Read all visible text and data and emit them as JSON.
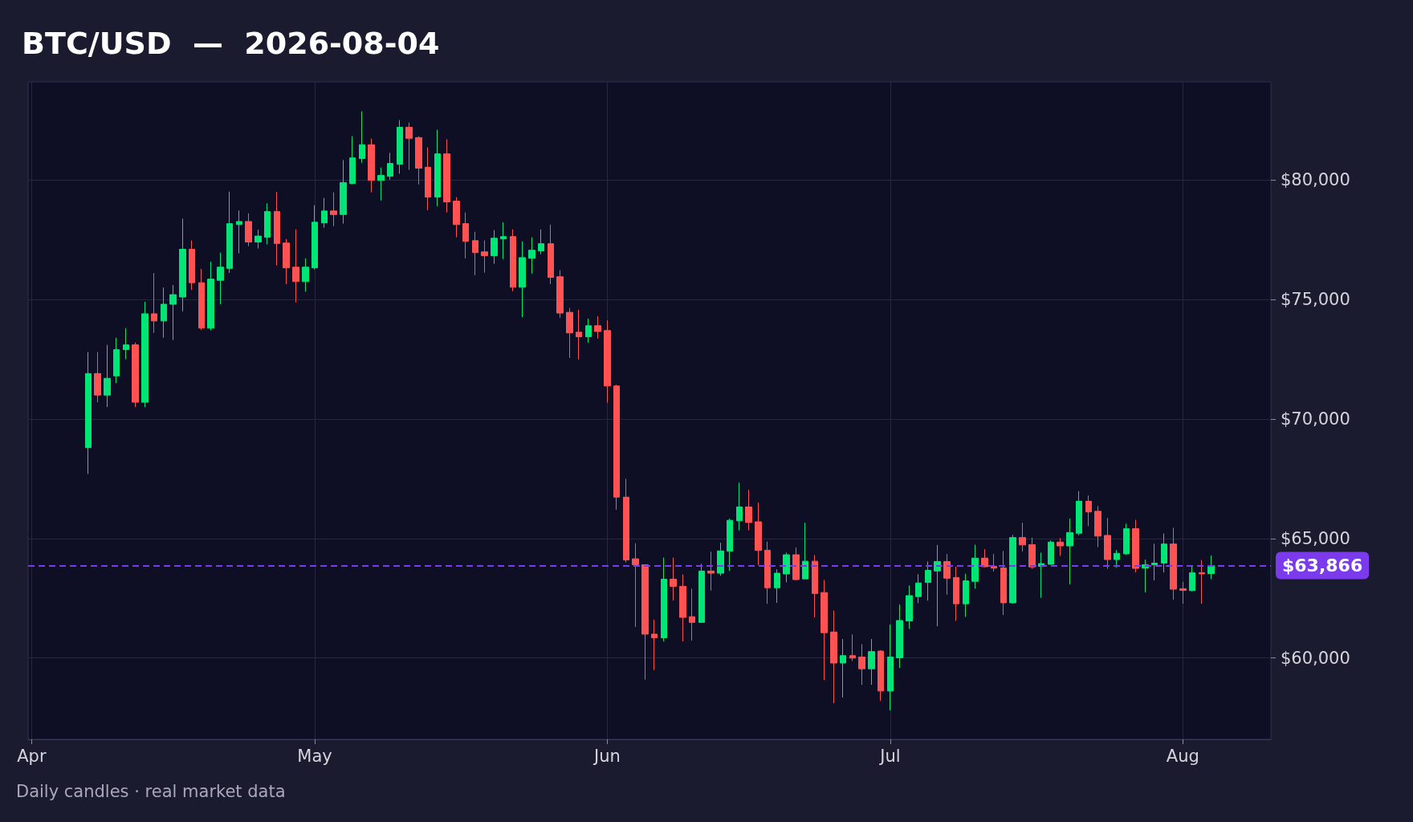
{
  "chart_data": {
    "type": "candlestick",
    "title": "BTC/USD  —  2026-08-04",
    "annotations": [
      "Daily candles · real market data"
    ],
    "x": [
      "2026-04-07",
      "2026-04-08",
      "2026-04-09",
      "2026-04-10",
      "2026-04-11",
      "2026-04-12",
      "2026-04-13",
      "2026-04-14",
      "2026-04-15",
      "2026-04-16",
      "2026-04-17",
      "2026-04-18",
      "2026-04-19",
      "2026-04-20",
      "2026-04-21",
      "2026-04-22",
      "2026-04-23",
      "2026-04-24",
      "2026-04-25",
      "2026-04-26",
      "2026-04-27",
      "2026-04-28",
      "2026-04-29",
      "2026-04-30",
      "2026-05-01",
      "2026-05-02",
      "2026-05-03",
      "2026-05-04",
      "2026-05-05",
      "2026-05-06",
      "2026-05-07",
      "2026-05-08",
      "2026-05-09",
      "2026-05-10",
      "2026-05-11",
      "2026-05-12",
      "2026-05-13",
      "2026-05-14",
      "2026-05-15",
      "2026-05-16",
      "2026-05-17",
      "2026-05-18",
      "2026-05-19",
      "2026-05-20",
      "2026-05-21",
      "2026-05-22",
      "2026-05-23",
      "2026-05-24",
      "2026-05-25",
      "2026-05-26",
      "2026-05-27",
      "2026-05-28",
      "2026-05-29",
      "2026-05-30",
      "2026-05-31",
      "2026-06-01",
      "2026-06-02",
      "2026-06-03",
      "2026-06-04",
      "2026-06-05",
      "2026-06-06",
      "2026-06-07",
      "2026-06-08",
      "2026-06-09",
      "2026-06-10",
      "2026-06-11",
      "2026-06-12",
      "2026-06-13",
      "2026-06-14",
      "2026-06-15",
      "2026-06-16",
      "2026-06-17",
      "2026-06-18",
      "2026-06-19",
      "2026-06-20",
      "2026-06-21",
      "2026-06-22",
      "2026-06-23",
      "2026-06-24",
      "2026-06-25",
      "2026-06-26",
      "2026-06-27",
      "2026-06-28",
      "2026-06-29",
      "2026-06-30",
      "2026-07-01",
      "2026-07-02",
      "2026-07-03",
      "2026-07-04",
      "2026-07-05",
      "2026-07-06",
      "2026-07-07",
      "2026-07-08",
      "2026-07-09",
      "2026-07-10",
      "2026-07-11",
      "2026-07-12",
      "2026-07-13",
      "2026-07-14",
      "2026-07-15",
      "2026-07-16",
      "2026-07-17",
      "2026-07-18",
      "2026-07-19",
      "2026-07-20",
      "2026-07-21",
      "2026-07-22",
      "2026-07-23",
      "2026-07-24",
      "2026-07-25",
      "2026-07-26",
      "2026-07-27",
      "2026-07-28",
      "2026-07-29",
      "2026-07-30",
      "2026-07-31",
      "2026-08-01",
      "2026-08-02",
      "2026-08-03",
      "2026-08-04"
    ],
    "ohlc": [
      [
        68800,
        72800,
        67700,
        71900
      ],
      [
        71900,
        72800,
        70700,
        71000
      ],
      [
        71000,
        73100,
        70500,
        71700
      ],
      [
        71800,
        73400,
        71500,
        72900
      ],
      [
        72900,
        73800,
        72500,
        73100
      ],
      [
        73100,
        73200,
        70500,
        70700
      ],
      [
        70700,
        74900,
        70500,
        74400
      ],
      [
        74400,
        76100,
        73600,
        74100
      ],
      [
        74100,
        75500,
        73400,
        74800
      ],
      [
        74800,
        75600,
        73300,
        75200
      ],
      [
        75100,
        78380,
        74500,
        77100
      ],
      [
        77100,
        77470,
        75400,
        75700
      ],
      [
        75700,
        76280,
        73730,
        73800
      ],
      [
        73800,
        76580,
        73700,
        75850
      ],
      [
        75800,
        76960,
        74800,
        76350
      ],
      [
        76300,
        79510,
        76110,
        78170
      ],
      [
        78130,
        78720,
        76930,
        78260
      ],
      [
        78260,
        78600,
        77230,
        77400
      ],
      [
        77400,
        77920,
        77130,
        77650
      ],
      [
        77600,
        79020,
        77300,
        78680
      ],
      [
        78680,
        79500,
        76420,
        77340
      ],
      [
        77360,
        77530,
        75640,
        76320
      ],
      [
        76350,
        77930,
        74870,
        75750
      ],
      [
        75750,
        76720,
        75330,
        76350
      ],
      [
        76320,
        78940,
        76250,
        78230
      ],
      [
        78200,
        79250,
        78000,
        78700
      ],
      [
        78700,
        79480,
        78060,
        78550
      ],
      [
        78550,
        80830,
        78170,
        79890
      ],
      [
        79850,
        81830,
        79810,
        80920
      ],
      [
        80890,
        82870,
        80720,
        81470
      ],
      [
        81470,
        81730,
        79480,
        79980
      ],
      [
        79980,
        80520,
        79140,
        80190
      ],
      [
        80150,
        81130,
        80010,
        80690
      ],
      [
        80660,
        82500,
        80260,
        82200
      ],
      [
        82200,
        82400,
        80420,
        81740
      ],
      [
        81770,
        81830,
        79810,
        80490
      ],
      [
        80530,
        81360,
        78730,
        79280
      ],
      [
        79280,
        82100,
        78900,
        81090
      ],
      [
        81090,
        81700,
        78640,
        79080
      ],
      [
        79110,
        79280,
        77600,
        78130
      ],
      [
        78170,
        78640,
        76720,
        77430
      ],
      [
        77460,
        77830,
        76010,
        76960
      ],
      [
        76990,
        77470,
        76120,
        76830
      ],
      [
        76830,
        77900,
        76490,
        77560
      ],
      [
        77530,
        78230,
        76690,
        77630
      ],
      [
        77630,
        77930,
        75340,
        75510
      ],
      [
        75510,
        77430,
        74260,
        76750
      ],
      [
        76720,
        77600,
        76080,
        77060
      ],
      [
        77030,
        77930,
        76890,
        77330
      ],
      [
        77330,
        78130,
        75640,
        75920
      ],
      [
        75950,
        76220,
        74230,
        74430
      ],
      [
        74460,
        74640,
        72550,
        73600
      ],
      [
        73630,
        74570,
        72490,
        73440
      ],
      [
        73440,
        74200,
        73190,
        73900
      ],
      [
        73900,
        74300,
        73360,
        73660
      ],
      [
        73700,
        74130,
        70680,
        71380
      ],
      [
        71380,
        71430,
        66200,
        66730
      ],
      [
        66730,
        67500,
        64000,
        64100
      ],
      [
        64150,
        64800,
        61300,
        63900
      ],
      [
        63900,
        63900,
        59100,
        61000
      ],
      [
        61000,
        61600,
        59500,
        60850
      ],
      [
        60850,
        64200,
        60700,
        63300
      ],
      [
        63300,
        64200,
        62400,
        63000
      ],
      [
        63000,
        63500,
        60700,
        61700
      ],
      [
        61730,
        62900,
        60730,
        61490
      ],
      [
        61490,
        63940,
        61490,
        63640
      ],
      [
        63640,
        64450,
        62820,
        63550
      ],
      [
        63550,
        64820,
        63440,
        64480
      ],
      [
        64470,
        65830,
        63650,
        65760
      ],
      [
        65740,
        67340,
        65340,
        66320
      ],
      [
        66320,
        67040,
        65340,
        65670
      ],
      [
        65700,
        66500,
        63890,
        64500
      ],
      [
        64510,
        64870,
        62270,
        62940
      ],
      [
        62940,
        63710,
        62310,
        63550
      ],
      [
        63520,
        64410,
        63170,
        64320
      ],
      [
        64320,
        64620,
        63250,
        63280
      ],
      [
        63310,
        65660,
        63310,
        64050
      ],
      [
        64050,
        64310,
        61700,
        62700
      ],
      [
        62740,
        63270,
        59080,
        61060
      ],
      [
        61090,
        61990,
        58110,
        59790
      ],
      [
        59790,
        60800,
        58350,
        60100
      ],
      [
        60100,
        60990,
        59880,
        60000
      ],
      [
        60040,
        60580,
        58880,
        59550
      ],
      [
        59550,
        60800,
        58880,
        60270
      ],
      [
        60290,
        60330,
        58210,
        58620
      ],
      [
        58620,
        61400,
        57810,
        60040
      ],
      [
        60010,
        62240,
        59580,
        61570
      ],
      [
        61550,
        63040,
        61220,
        62610
      ],
      [
        62570,
        63510,
        62300,
        63140
      ],
      [
        63160,
        64040,
        62400,
        63670
      ],
      [
        63640,
        64730,
        61330,
        64040
      ],
      [
        64040,
        64350,
        62650,
        63340
      ],
      [
        63370,
        63820,
        61550,
        62270
      ],
      [
        62270,
        63530,
        61720,
        63230
      ],
      [
        63210,
        64740,
        62910,
        64180
      ],
      [
        64180,
        64550,
        63800,
        63820
      ],
      [
        63840,
        64350,
        63620,
        63760
      ],
      [
        63770,
        64480,
        61800,
        62310
      ],
      [
        62310,
        65150,
        62270,
        65040
      ],
      [
        65040,
        65660,
        64460,
        64730
      ],
      [
        64740,
        65040,
        63730,
        63810
      ],
      [
        63830,
        64410,
        62520,
        63950
      ],
      [
        63920,
        64920,
        63920,
        64850
      ],
      [
        64850,
        65020,
        64270,
        64690
      ],
      [
        64690,
        65830,
        63080,
        65250
      ],
      [
        65220,
        66980,
        65130,
        66560
      ],
      [
        66560,
        66800,
        65520,
        66110
      ],
      [
        66140,
        66360,
        64640,
        65100
      ],
      [
        65130,
        65860,
        63730,
        64120
      ],
      [
        64120,
        64520,
        63790,
        64380
      ],
      [
        64360,
        65620,
        64320,
        65410
      ],
      [
        65410,
        65780,
        63580,
        63750
      ],
      [
        63760,
        64120,
        62750,
        63900
      ],
      [
        63900,
        64780,
        63250,
        63970
      ],
      [
        63970,
        65210,
        63580,
        64770
      ],
      [
        64770,
        65450,
        62440,
        62880
      ],
      [
        62900,
        63190,
        62270,
        62830
      ],
      [
        62820,
        63850,
        62790,
        63570
      ],
      [
        63570,
        64100,
        62270,
        63520
      ],
      [
        63530,
        64290,
        63300,
        63866
      ]
    ],
    "colors": [
      "#00e676",
      "#ff5252",
      "#00e676",
      "#00e676",
      "#00e676",
      "#ff5252",
      "#00e676",
      "#ff5252",
      "#00e676",
      "#00e676",
      "#00e676",
      "#ff5252",
      "#ff5252",
      "#00e676",
      "#00e676",
      "#00e676",
      "#00e676",
      "#ff5252",
      "#00e676",
      "#00e676",
      "#ff5252",
      "#ff5252",
      "#ff5252",
      "#00e676",
      "#00e676",
      "#00e676",
      "#ff5252",
      "#00e676",
      "#00e676",
      "#00e676",
      "#ff5252",
      "#00e676",
      "#00e676",
      "#00e676",
      "#ff5252",
      "#ff5252",
      "#ff5252",
      "#00e676",
      "#ff5252",
      "#ff5252",
      "#ff5252",
      "#ff5252",
      "#ff5252",
      "#00e676",
      "#00e676",
      "#ff5252",
      "#00e676",
      "#00e676",
      "#00e676",
      "#ff5252",
      "#ff5252",
      "#ff5252",
      "#ff5252",
      "#00e676",
      "#ff5252",
      "#ff5252",
      "#ff5252",
      "#ff5252",
      "#ff5252",
      "#ff5252",
      "#ff5252",
      "#00e676",
      "#ff5252",
      "#ff5252",
      "#ff5252",
      "#00e676",
      "#ff5252",
      "#00e676",
      "#00e676",
      "#00e676",
      "#ff5252",
      "#ff5252",
      "#ff5252",
      "#00e676",
      "#00e676",
      "#ff5252",
      "#00e676",
      "#ff5252",
      "#ff5252",
      "#ff5252",
      "#00e676",
      "#ff5252",
      "#ff5252",
      "#00e676",
      "#ff5252",
      "#00e676",
      "#00e676",
      "#00e676",
      "#00e676",
      "#00e676",
      "#00e676",
      "#ff5252",
      "#ff5252",
      "#00e676",
      "#00e676",
      "#ff5252",
      "#ff5252",
      "#ff5252",
      "#00e676",
      "#ff5252",
      "#ff5252",
      "#00e676",
      "#00e676",
      "#ff5252",
      "#00e676",
      "#00e676",
      "#ff5252",
      "#ff5252",
      "#ff5252",
      "#00e676",
      "#00e676",
      "#ff5252",
      "#00e676",
      "#00e676",
      "#00e676",
      "#ff5252",
      "#ff5252",
      "#00e676",
      "#ff5252",
      "#00e676"
    ],
    "xlim": [
      "2026-03-31T15:00",
      "2026-08-10T08:00"
    ],
    "xticks": [
      {
        "value": "2026-04-01",
        "label": "Apr"
      },
      {
        "value": "2026-05-01",
        "label": "May"
      },
      {
        "value": "2026-06-01",
        "label": "Jun"
      },
      {
        "value": "2026-07-01",
        "label": "Jul"
      },
      {
        "value": "2026-08-01",
        "label": "Aug"
      }
    ],
    "ylim": [
      56600,
      84100
    ],
    "yticks": [
      {
        "value": 60000,
        "label": "$60,000"
      },
      {
        "value": 65000,
        "label": "$65,000"
      },
      {
        "value": 70000,
        "label": "$70,000"
      },
      {
        "value": 75000,
        "label": "$75,000"
      },
      {
        "value": 80000,
        "label": "$80,000"
      }
    ],
    "ref_lines": [
      {
        "axis": "y",
        "value": 63866,
        "label": "$63,866",
        "color": "#7c3aed",
        "line_style": "dashed"
      }
    ],
    "grid": true
  }
}
